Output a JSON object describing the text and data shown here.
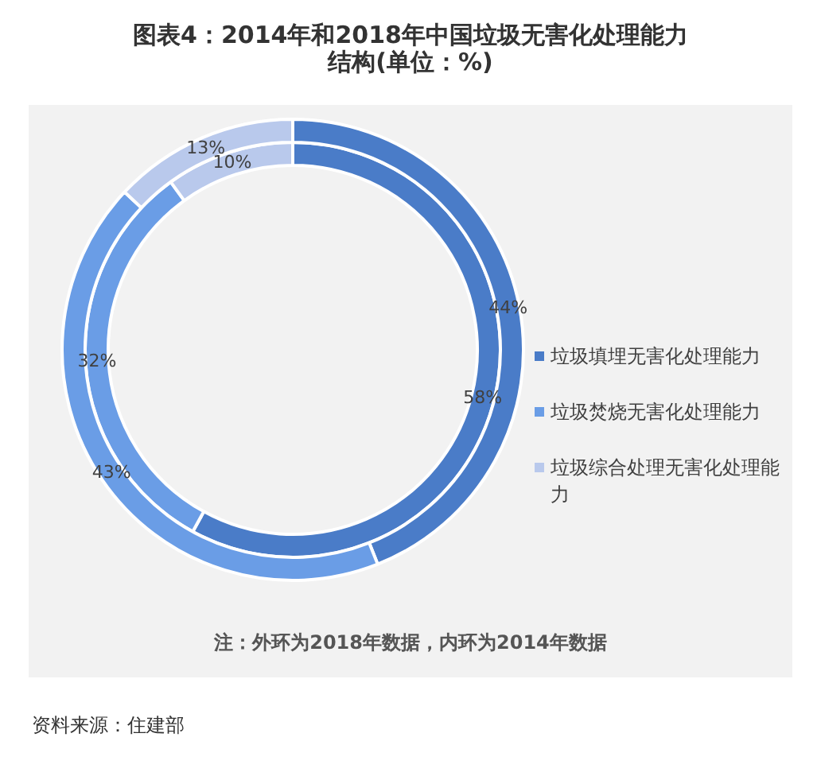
{
  "chart_data": {
    "type": "donut",
    "title": "图表4：2014年和2018年中国垃圾无害化处理能力结构(单位：%)",
    "categories": [
      "垃圾填埋无害化处理能力",
      "垃圾焚烧无害化处理能力",
      "垃圾综合处理无害化处理能力"
    ],
    "colors": [
      "#4a7cc8",
      "#6a9de6",
      "#b9c9ec"
    ],
    "series": [
      {
        "values": [
          58,
          32,
          10
        ],
        "value_labels": [
          "58%",
          "32%",
          "10%"
        ]
      },
      {
        "values": [
          44,
          43,
          13
        ],
        "value_labels": [
          "44%",
          "43%",
          "13%"
        ]
      }
    ],
    "legend": "right",
    "annotations": [
      "注：外环为2018年数据，内环为2014年数据",
      "资料来源：住建部"
    ]
  }
}
